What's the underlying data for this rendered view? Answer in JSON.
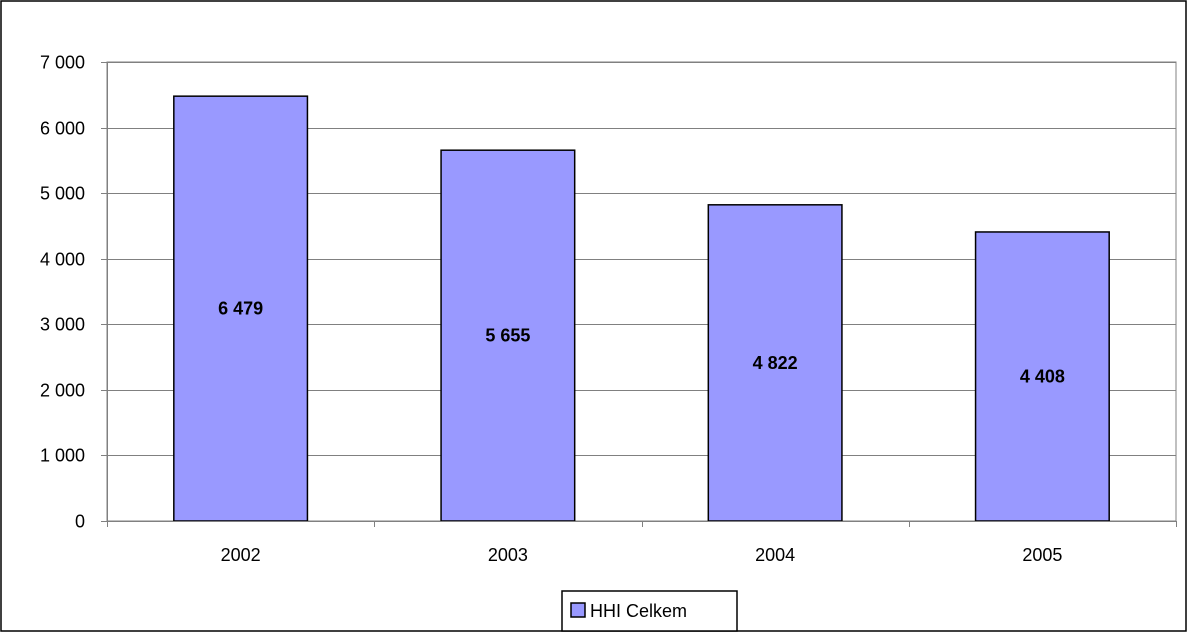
{
  "chart_data": {
    "type": "bar",
    "categories": [
      "2002",
      "2003",
      "2004",
      "2005"
    ],
    "series": [
      {
        "name": "HHI Celkem",
        "values": [
          6479,
          5655,
          4822,
          4408
        ],
        "value_labels": [
          "6 479",
          "5 655",
          "4 822",
          "4 408"
        ],
        "color": "#9999FF"
      }
    ],
    "title": "",
    "xlabel": "",
    "ylabel": "",
    "ylim": [
      0,
      7000
    ],
    "yticks": [
      0,
      1000,
      2000,
      3000,
      4000,
      5000,
      6000,
      7000
    ],
    "ytick_labels": [
      "0",
      "1 000",
      "2 000",
      "3 000",
      "4 000",
      "5 000",
      "6 000",
      "7 000"
    ],
    "grid": true,
    "legend_position": "bottom"
  }
}
